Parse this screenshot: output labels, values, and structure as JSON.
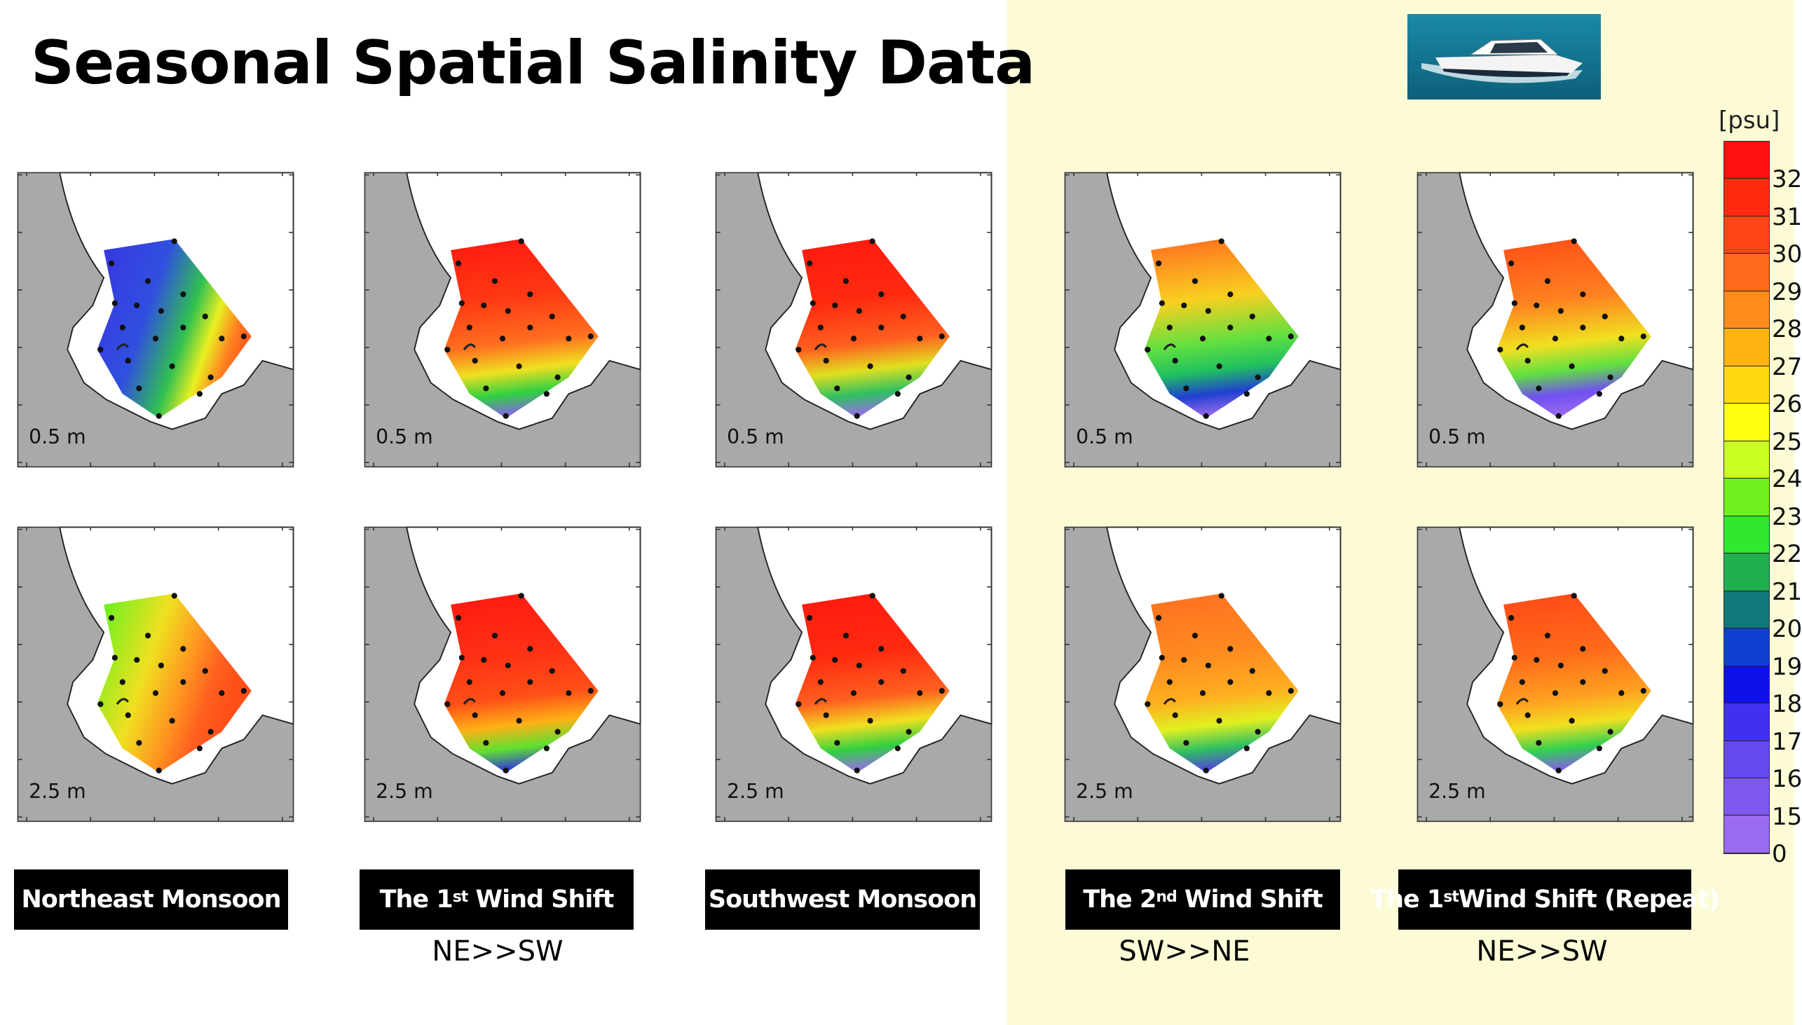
{
  "title": "Seasonal Spatial Salinity Data",
  "colors": {
    "right_background": "#fdfbd6",
    "land": "#a9a9a9",
    "sea": "#ffffff"
  },
  "boat_image": {
    "icon": "speedboat-photo"
  },
  "colorbar": {
    "unit": "[psu]",
    "colors": [
      "#ff1010",
      "#ff2a10",
      "#ff4515",
      "#ff6a1a",
      "#ff8c1a",
      "#ffb315",
      "#ffd810",
      "#ffff10",
      "#c8ff20",
      "#70f020",
      "#30e830",
      "#20b050",
      "#107878",
      "#1040d0",
      "#1010e8",
      "#4030f0",
      "#6648f0",
      "#8058f0",
      "#9a6af0"
    ],
    "labels": [
      "32",
      "31",
      "30",
      "29",
      "28",
      "27",
      "26",
      "25",
      "24",
      "23",
      "22",
      "21",
      "20",
      "19",
      "18",
      "17",
      "16",
      "15",
      "0"
    ]
  },
  "seasons": [
    {
      "label_main": "Northeast Monsoon",
      "label_sup": "",
      "label_rest": "",
      "direction": ""
    },
    {
      "label_main": "The 1",
      "label_sup": "st",
      "label_rest": " Wind Shift",
      "direction": "NE>>SW"
    },
    {
      "label_main": "Southwest Monsoon",
      "label_sup": "",
      "label_rest": "",
      "direction": ""
    },
    {
      "label_main": "The 2",
      "label_sup": "nd",
      "label_rest": " Wind Shift",
      "direction": "SW>>NE"
    },
    {
      "label_main": "The 1",
      "label_sup": "st",
      "label_rest": "Wind Shift (Repeat)",
      "direction": "NE>>SW"
    }
  ],
  "maps": [
    {
      "season": 0,
      "depth": "0.5 m",
      "gradient_dir": "horizontal",
      "stops": [
        "#3838e0",
        "#3050e0",
        "#30c050",
        "#e8f020",
        "#ff8020",
        "#ff4a18"
      ]
    },
    {
      "season": 1,
      "depth": "0.5 m",
      "gradient_dir": "vertical",
      "stops": [
        "#ff1a10",
        "#ff3a14",
        "#ff7020",
        "#f0e020",
        "#30d040",
        "#8a60f0"
      ]
    },
    {
      "season": 2,
      "depth": "0.5 m",
      "gradient_dir": "vertical",
      "stops": [
        "#ff1a10",
        "#ff2a10",
        "#ff6020",
        "#e0e020",
        "#30c060",
        "#9a6af0"
      ]
    },
    {
      "season": 3,
      "depth": "0.5 m",
      "gradient_dir": "vertical",
      "stops": [
        "#ff7020",
        "#f8d020",
        "#60e040",
        "#20c060",
        "#2040d0",
        "#9a6af0"
      ]
    },
    {
      "season": 4,
      "depth": "0.5 m",
      "gradient_dir": "vertical",
      "stops": [
        "#ff5018",
        "#ff8020",
        "#f0e020",
        "#60e040",
        "#7050f0",
        "#9a6af0"
      ]
    },
    {
      "season": 0,
      "depth": "2.5 m",
      "gradient_dir": "horizontal",
      "stops": [
        "#70f020",
        "#f0e020",
        "#ff9020",
        "#ff6020",
        "#ff5018",
        "#ff4a18"
      ]
    },
    {
      "season": 1,
      "depth": "2.5 m",
      "gradient_dir": "vertical",
      "stops": [
        "#ff1a10",
        "#ff3014",
        "#ff5018",
        "#ffb015",
        "#60e030",
        "#3030e0"
      ]
    },
    {
      "season": 2,
      "depth": "2.5 m",
      "gradient_dir": "vertical",
      "stops": [
        "#ff1a10",
        "#ff2a10",
        "#ff6020",
        "#f0e020",
        "#30d040",
        "#9a6af0"
      ]
    },
    {
      "season": 3,
      "depth": "2.5 m",
      "gradient_dir": "vertical",
      "stops": [
        "#ff7020",
        "#ff8a20",
        "#ffb020",
        "#e0f020",
        "#30c060",
        "#5040e0"
      ]
    },
    {
      "season": 4,
      "depth": "2.5 m",
      "gradient_dir": "vertical",
      "stops": [
        "#ff4a18",
        "#ff6a1a",
        "#ffa020",
        "#f0e020",
        "#30d050",
        "#8a58f0"
      ]
    }
  ]
}
